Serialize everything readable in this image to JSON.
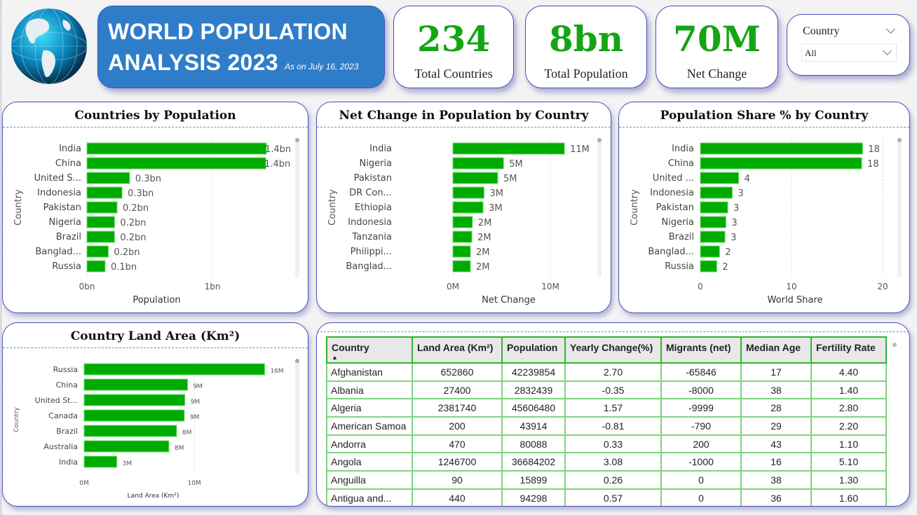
{
  "header": {
    "title_line1": "WORLD POPULATION",
    "title_line2": "ANALYSIS 2023",
    "subtitle": "As on July 16, 2023",
    "logo": "globe-image"
  },
  "kpis": [
    {
      "value": "234",
      "label": "Total Countries"
    },
    {
      "value": "8bn",
      "label": "Total Population"
    },
    {
      "value": "70M",
      "label": "Net Change"
    }
  ],
  "slicer": {
    "title": "Country",
    "selected": "All"
  },
  "colors": {
    "bar": "#00ab00",
    "title_bg": "#2f7dc9",
    "kpi_number": "#14a514",
    "border": "#4450b8",
    "table_border": "#2fb52f"
  },
  "chart_data": [
    {
      "type": "bar",
      "orientation": "horizontal",
      "title": "Countries by Population",
      "xlabel": "Population",
      "ylabel": "Country",
      "categories": [
        "India",
        "China",
        "United S...",
        "Indonesia",
        "Pakistan",
        "Nigeria",
        "Brazil",
        "Banglad...",
        "Russia"
      ],
      "values": [
        1.43,
        1.425,
        0.34,
        0.28,
        0.24,
        0.22,
        0.22,
        0.17,
        0.145
      ],
      "data_labels": [
        "1.4bn",
        "1.4bn",
        "0.3bn",
        "0.3bn",
        "0.2bn",
        "0.2bn",
        "0.2bn",
        "0.2bn",
        "0.1bn"
      ],
      "unit": "bn",
      "ticks": [
        0,
        1
      ],
      "tick_labels": [
        "0bn",
        "1bn"
      ],
      "grid": true
    },
    {
      "type": "bar",
      "orientation": "horizontal",
      "title": "Net Change in Population by Country",
      "xlabel": "Net Change",
      "ylabel": "Country",
      "categories": [
        "India",
        "Nigeria",
        "Pakistan",
        "DR Con...",
        "Ethiopia",
        "Indonesia",
        "Tanzania",
        "Philippi...",
        "Banglad..."
      ],
      "values": [
        11.45,
        5.2,
        4.6,
        3.2,
        3.1,
        2.0,
        1.95,
        1.8,
        1.8
      ],
      "data_labels": [
        "11M",
        "5M",
        "5M",
        "3M",
        "3M",
        "2M",
        "2M",
        "2M",
        "2M"
      ],
      "unit": "M",
      "ticks": [
        0,
        10
      ],
      "tick_labels": [
        "0M",
        "10M"
      ],
      "grid": true
    },
    {
      "type": "bar",
      "orientation": "horizontal",
      "title": "Population Share % by Country",
      "xlabel": "World Share",
      "ylabel": "Country",
      "categories": [
        "India",
        "China",
        "United ...",
        "Indonesia",
        "Pakistan",
        "Nigeria",
        "Brazil",
        "Banglad...",
        "Russia"
      ],
      "values": [
        17.8,
        17.7,
        4.2,
        3.5,
        3.0,
        2.8,
        2.7,
        2.1,
        1.8
      ],
      "data_labels": [
        "18",
        "18",
        "4",
        "3",
        "3",
        "3",
        "3",
        "2",
        "2"
      ],
      "ticks": [
        0,
        10,
        20
      ],
      "tick_labels": [
        "0",
        "10",
        "20"
      ],
      "grid": true
    },
    {
      "type": "bar",
      "orientation": "horizontal",
      "title": "Country Land Area (Km²)",
      "xlabel": "Land Area (Km²)",
      "ylabel": "Country",
      "categories": [
        "Russia",
        "China",
        "United St...",
        "Canada",
        "Brazil",
        "Australia",
        "India"
      ],
      "values": [
        16.4,
        9.4,
        9.15,
        9.1,
        8.4,
        7.7,
        2.97
      ],
      "data_labels": [
        "16M",
        "9M",
        "9M",
        "9M",
        "8M",
        "8M",
        "3M"
      ],
      "unit": "M",
      "ticks": [
        0,
        10
      ],
      "tick_labels": [
        "0M",
        "10M"
      ],
      "grid": true
    }
  ],
  "table": {
    "columns": [
      "Country",
      "Land Area (Km²)",
      "Population",
      "Yearly Change(%)",
      "Migrants (net)",
      "Median Age",
      "Fertility Rate"
    ],
    "sort": {
      "column": "Country",
      "direction": "ascending"
    },
    "rows": [
      [
        "Afghanistan",
        "652860",
        "42239854",
        "2.70",
        "-65846",
        "17",
        "4.40"
      ],
      [
        "Albania",
        "27400",
        "2832439",
        "-0.35",
        "-8000",
        "38",
        "1.40"
      ],
      [
        "Algeria",
        "2381740",
        "45606480",
        "1.57",
        "-9999",
        "28",
        "2.80"
      ],
      [
        "American Samoa",
        "200",
        "43914",
        "-0.81",
        "-790",
        "29",
        "2.20"
      ],
      [
        "Andorra",
        "470",
        "80088",
        "0.33",
        "200",
        "43",
        "1.10"
      ],
      [
        "Angola",
        "1246700",
        "36684202",
        "3.08",
        "-1000",
        "16",
        "5.10"
      ],
      [
        "Anguilla",
        "90",
        "15899",
        "0.26",
        "0",
        "38",
        "1.30"
      ],
      [
        "Antigua and...",
        "440",
        "94298",
        "0.57",
        "0",
        "36",
        "1.60"
      ]
    ]
  }
}
